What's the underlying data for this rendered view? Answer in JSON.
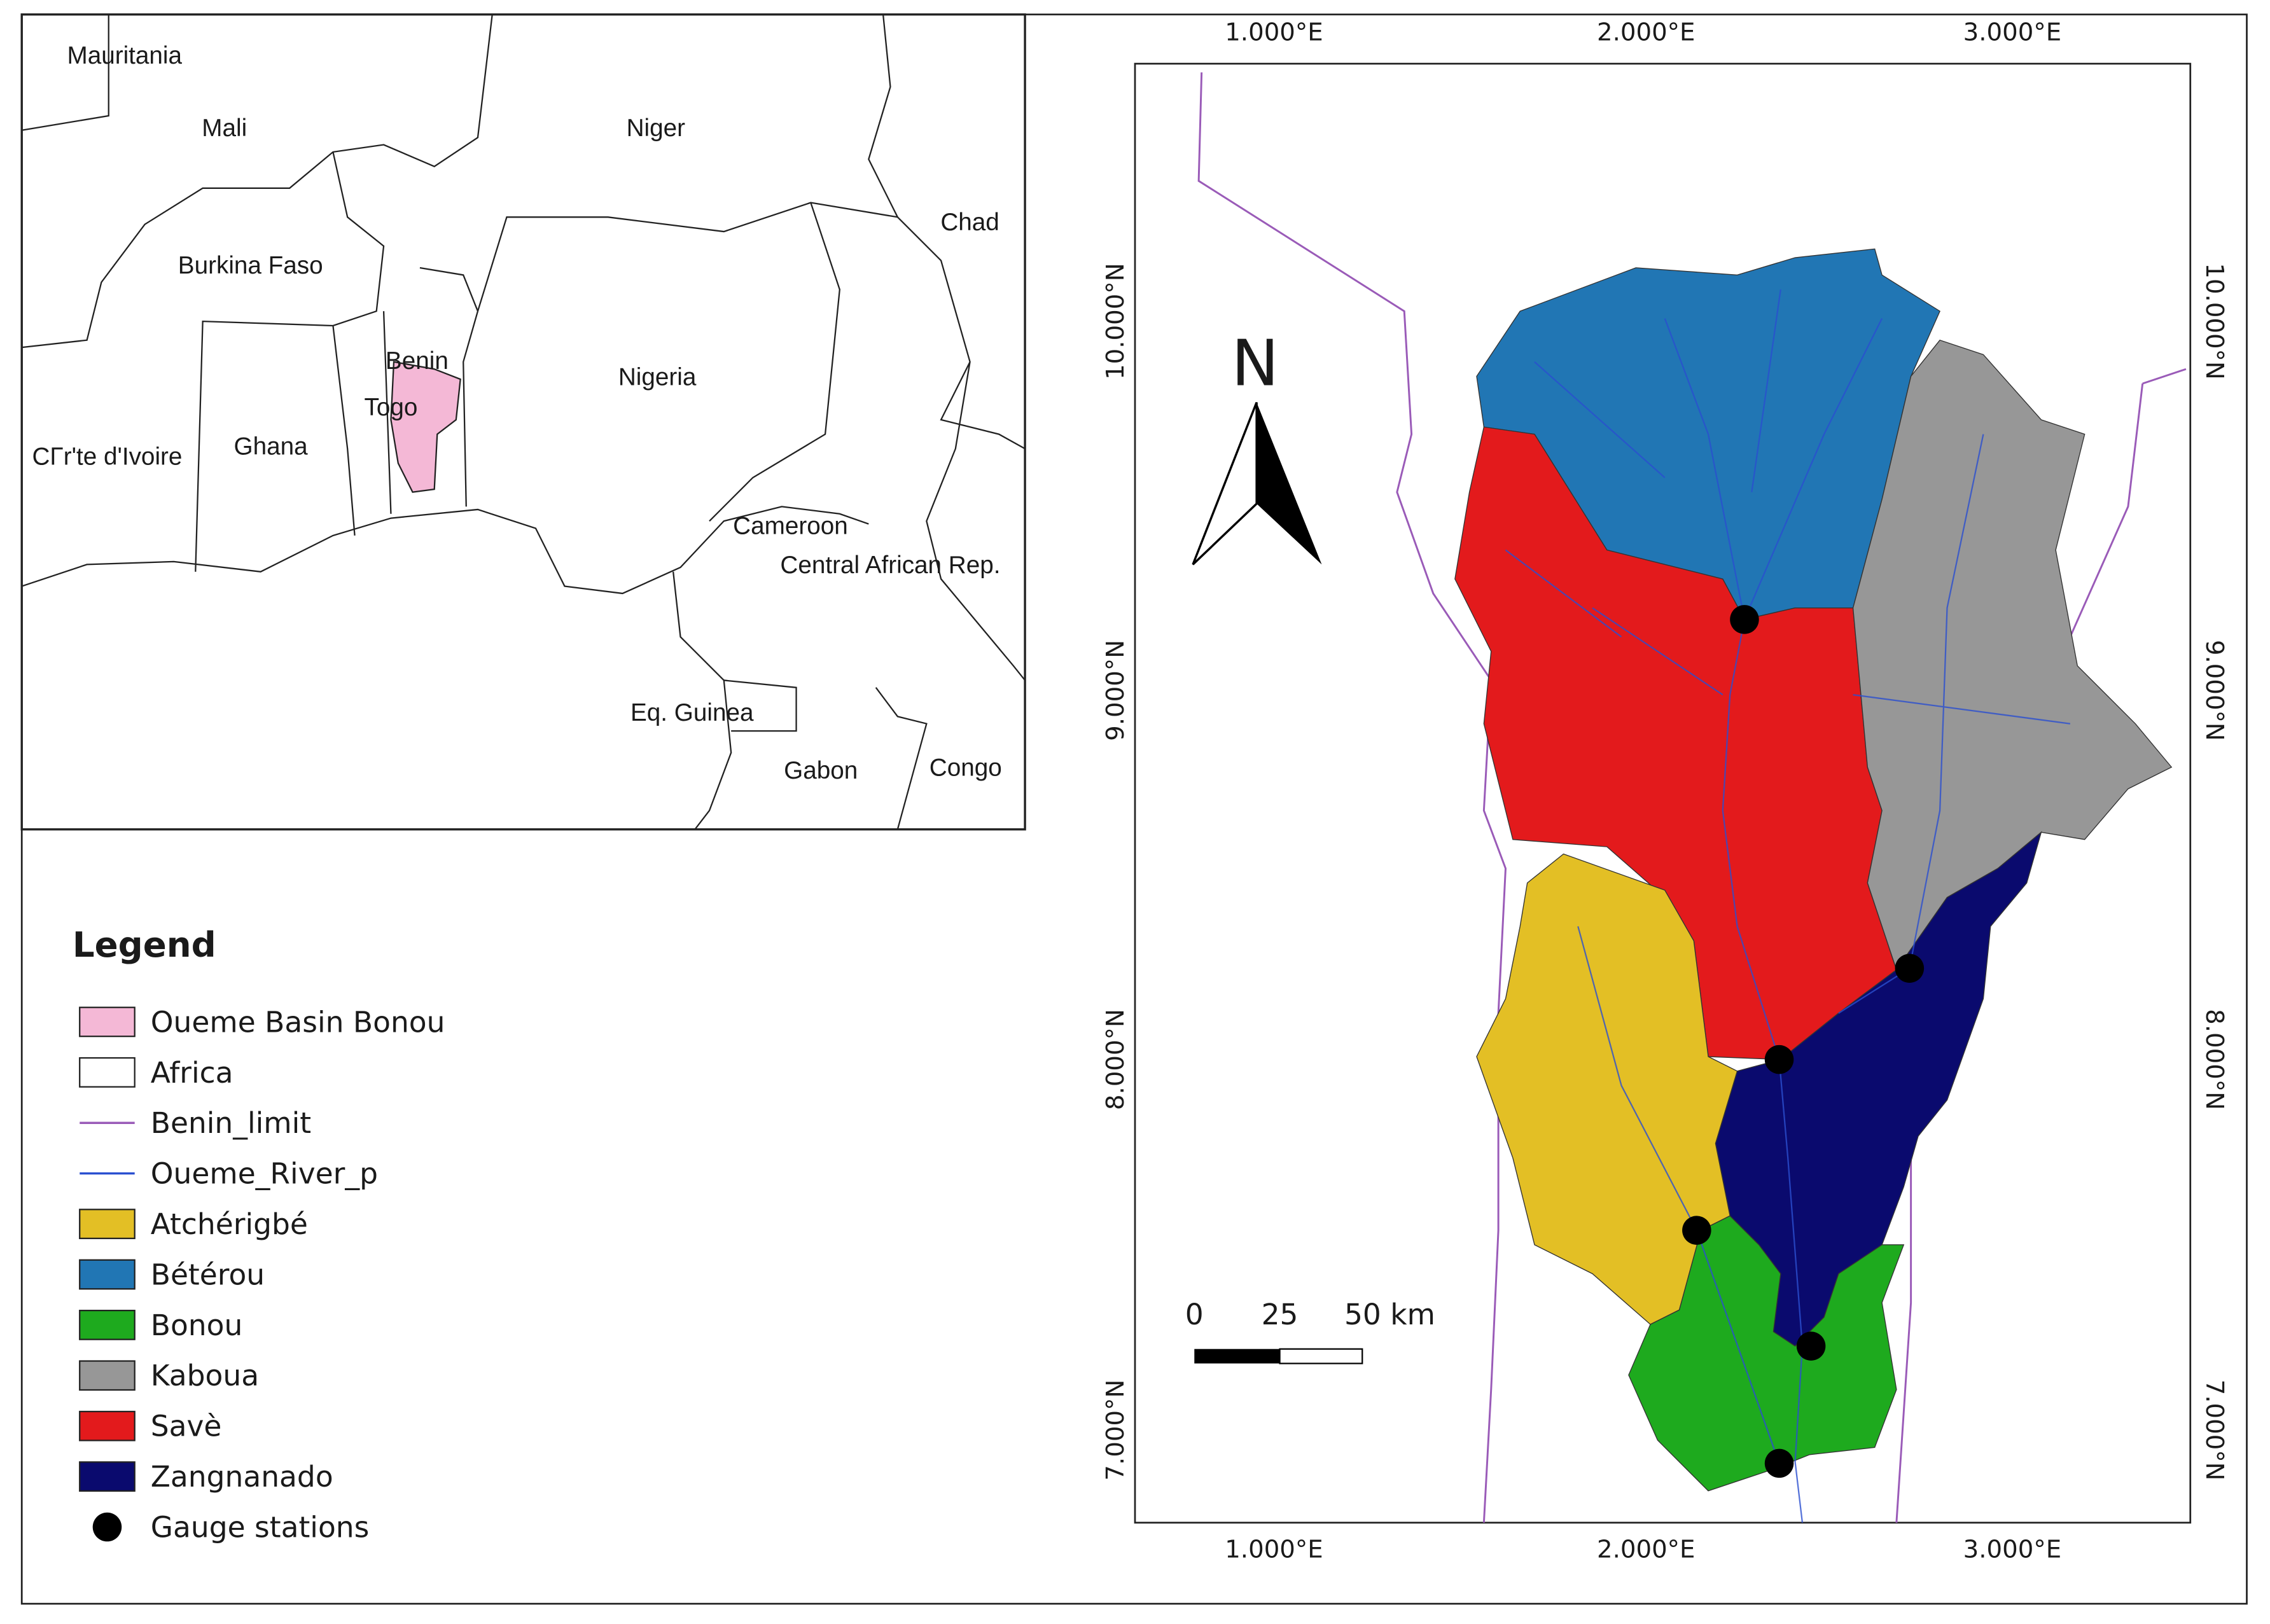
{
  "inset": {
    "labels": [
      "Mauritania",
      "Mali",
      "Niger",
      "Chad",
      "Burkina Faso",
      "Benin",
      "Togo",
      "Nigeria",
      "CΓr'te d'Ivoire",
      "Ghana",
      "Cameroon",
      "Central African Rep.",
      "Eq. Guinea",
      "Gabon",
      "Congo"
    ]
  },
  "legend": {
    "title": "Legend",
    "items": [
      {
        "label": "Oueme Basin Bonou",
        "color": "#f4b8d6"
      },
      {
        "label": "Africa",
        "color": "#ffffff"
      },
      {
        "label": "Benin_limit",
        "color": "#9a5bb8"
      },
      {
        "label": "Oueme_River_p",
        "color": "#2a4fd0"
      },
      {
        "label": "Atchérigbé",
        "color": "#e3bf25"
      },
      {
        "label": "Bétérou",
        "color": "#2176b4"
      },
      {
        "label": "Bonou",
        "color": "#1eaa1e"
      },
      {
        "label": "Kaboua",
        "color": "#979797"
      },
      {
        "label": "Savè",
        "color": "#e31a1c"
      },
      {
        "label": "Zangnanado",
        "color": "#0a0a6e"
      },
      {
        "label": "Gauge stations",
        "color": "#000000"
      }
    ]
  },
  "main_map": {
    "north": "N",
    "x_ticks": [
      "1.000°E",
      "2.000°E",
      "3.000°E"
    ],
    "y_ticks": [
      "10.000°N",
      "9.000°N",
      "8.000°N",
      "7.000°N"
    ],
    "scale_bar": [
      "0",
      "25",
      "50 km"
    ]
  }
}
